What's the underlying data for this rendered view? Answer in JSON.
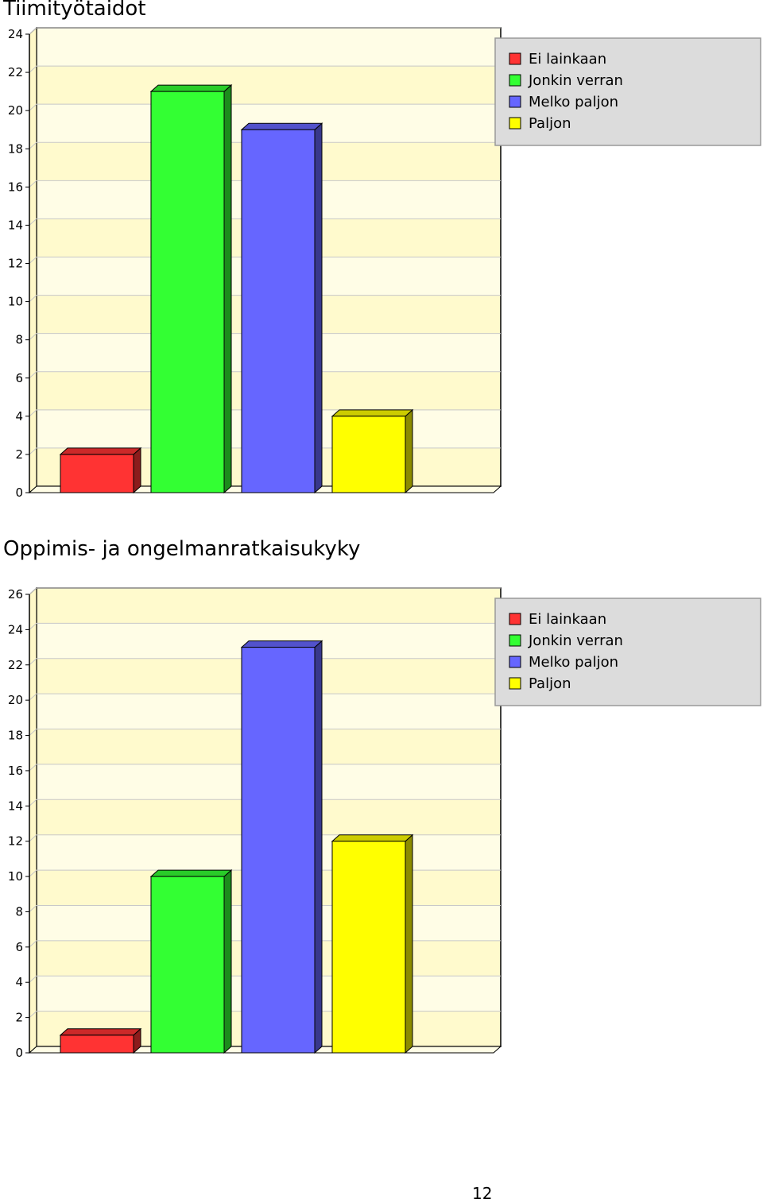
{
  "page_number": "12",
  "legend_colors": {
    "Ei lainkaan": "#ff3333",
    "Jonkin verran": "#33ff33",
    "Melko paljon": "#6666ff",
    "Paljon": "#ffff00"
  },
  "chart_data": [
    {
      "type": "bar",
      "title": "Tiimityötaidot",
      "categories": [
        "Ei lainkaan",
        "Jonkin verran",
        "Melko paljon",
        "Paljon"
      ],
      "values": [
        2,
        21,
        19,
        4
      ],
      "ylim": [
        0,
        24
      ],
      "yticks": [
        "0",
        "2",
        "4",
        "6",
        "8",
        "10",
        "12",
        "14",
        "16",
        "18",
        "20",
        "22",
        "24"
      ],
      "legend": [
        "Ei lainkaan",
        "Jonkin verran",
        "Melko paljon",
        "Paljon"
      ],
      "legend_position": "top-right",
      "grid": true
    },
    {
      "type": "bar",
      "title": "Oppimis- ja ongelmanratkaisukyky",
      "categories": [
        "Ei lainkaan",
        "Jonkin verran",
        "Melko paljon",
        "Paljon"
      ],
      "values": [
        1,
        10,
        23,
        12
      ],
      "ylim": [
        0,
        26
      ],
      "yticks": [
        "0",
        "2",
        "4",
        "6",
        "8",
        "10",
        "12",
        "14",
        "16",
        "18",
        "20",
        "22",
        "24",
        "26"
      ],
      "legend": [
        "Ei lainkaan",
        "Jonkin verran",
        "Melko paljon",
        "Paljon"
      ],
      "legend_position": "top-right",
      "grid": true
    }
  ]
}
